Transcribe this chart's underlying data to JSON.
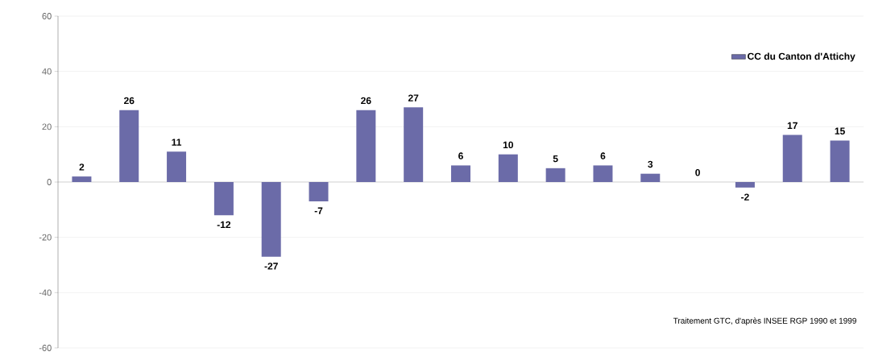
{
  "chart_data": {
    "type": "bar",
    "categories": [
      null,
      null,
      null,
      null,
      null,
      null,
      null,
      null,
      null,
      null,
      null,
      null,
      null,
      null,
      null,
      null,
      null
    ],
    "series": [
      {
        "name": "CC du Canton d'Attichy",
        "color": "#6b6ba8",
        "values": [
          2,
          26,
          11,
          -12,
          -27,
          -7,
          26,
          27,
          6,
          10,
          5,
          6,
          3,
          0,
          -2,
          17,
          15
        ]
      }
    ],
    "ylim": [
      -60,
      60
    ],
    "yticks": [
      -60,
      -40,
      -20,
      0,
      20,
      40,
      60
    ],
    "grid": "y",
    "legend": "top right",
    "data_labels": true,
    "annotations": [
      "Traitement GTC, d'après INSEE RGP 1990 et 1999"
    ]
  }
}
